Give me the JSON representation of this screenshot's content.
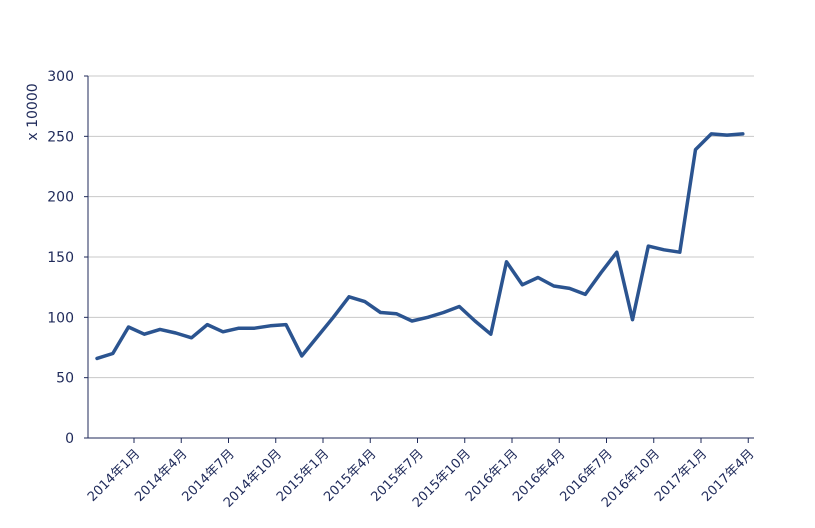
{
  "chart_data": {
    "type": "line",
    "ylabel": "x 10000",
    "xlabel": "",
    "title": "",
    "ylim": [
      0,
      300
    ],
    "yticks": [
      0,
      50,
      100,
      150,
      200,
      250,
      300
    ],
    "x_tick_labels": [
      "2014年1月",
      "2014年4月",
      "2014年7月",
      "2014年10月",
      "2015年1月",
      "2015年4月",
      "2015年7月",
      "2015年10月",
      "2016年1月",
      "2016年4月",
      "2016年7月",
      "2016年10月",
      "2017年1月",
      "2017年4月"
    ],
    "grid": "horizontal",
    "line_color": "#2b5490",
    "axis_color": "#1f2a5a",
    "grid_color": "#c8c8c8",
    "series": [
      {
        "x": [
          "2014年1月",
          "2014年2月",
          "2014年3月",
          "2014年4月",
          "2014年5月",
          "2014年6月",
          "2014年7月",
          "2014年8月",
          "2014年9月",
          "2014年10月",
          "2014年11月",
          "2014年12月",
          "2015年1月",
          "2015年2月",
          "2015年3月",
          "2015年4月",
          "2015年5月",
          "2015年6月",
          "2015年7月",
          "2015年8月",
          "2015年9月",
          "2015年10月",
          "2015年11月",
          "2015年12月",
          "2016年1月",
          "2016年2月",
          "2016年3月",
          "2016年4月",
          "2016年5月",
          "2016年6月",
          "2016年7月",
          "2016年8月",
          "2016年9月",
          "2016年10月",
          "2016年11月",
          "2016年12月",
          "2017年1月",
          "2017年2月",
          "2017年3月",
          "2017年4月",
          "2017年5月",
          "2017年6月"
        ],
        "values": [
          66,
          70,
          92,
          86,
          90,
          87,
          83,
          94,
          88,
          91,
          91,
          93,
          94,
          68,
          84,
          100,
          117,
          113,
          104,
          103,
          97,
          100,
          104,
          109,
          97,
          86,
          146,
          127,
          133,
          126,
          124,
          119,
          137,
          154,
          98,
          159,
          156,
          154,
          239,
          252,
          251,
          252
        ]
      }
    ]
  }
}
